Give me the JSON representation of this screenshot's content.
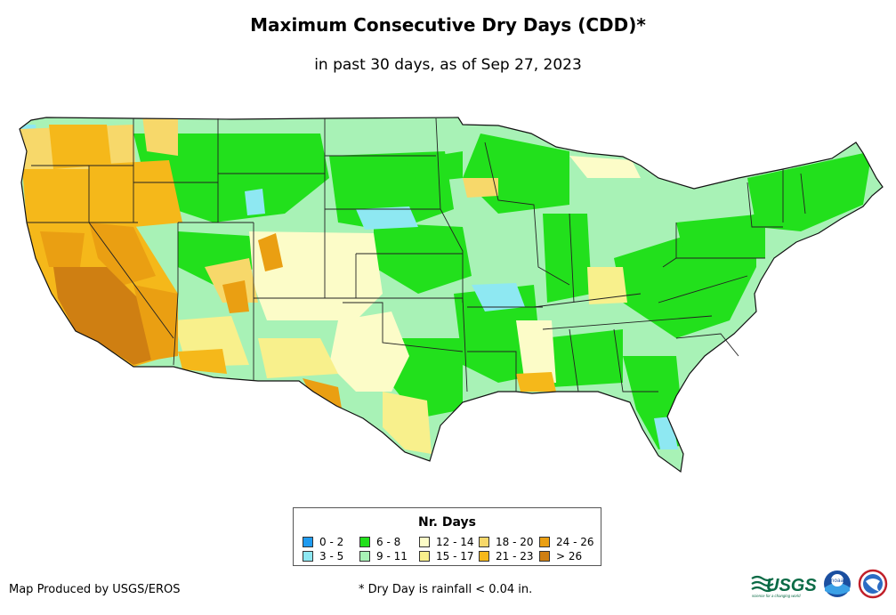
{
  "title": "Maximum Consecutive Dry Days (CDD)*",
  "subtitle": "in past 30 days, as of Sep 27, 2023",
  "legend": {
    "title": "Nr. Days",
    "items": [
      {
        "label": "0 - 2",
        "color": "#1f9bf0"
      },
      {
        "label": "3 - 5",
        "color": "#8ee8f2"
      },
      {
        "label": "6 - 8",
        "color": "#22e01c"
      },
      {
        "label": "9 - 11",
        "color": "#a8f2b6"
      },
      {
        "label": "12 - 14",
        "color": "#fcfcc8"
      },
      {
        "label": "15 - 17",
        "color": "#f8f08c"
      },
      {
        "label": "18 - 20",
        "color": "#f7d86a"
      },
      {
        "label": "21 - 23",
        "color": "#f5b81a"
      },
      {
        "label": "24 - 26",
        "color": "#ea9f12"
      },
      {
        "label": "> 26",
        "color": "#cf7f12"
      }
    ]
  },
  "credit": "Map Produced by USGS/EROS",
  "footnote": "* Dry Day is rainfall < 0.04 in.",
  "logos": {
    "usgs": "USGS",
    "usgs_tagline": "science for a changing world",
    "noaa": "noaa"
  }
}
